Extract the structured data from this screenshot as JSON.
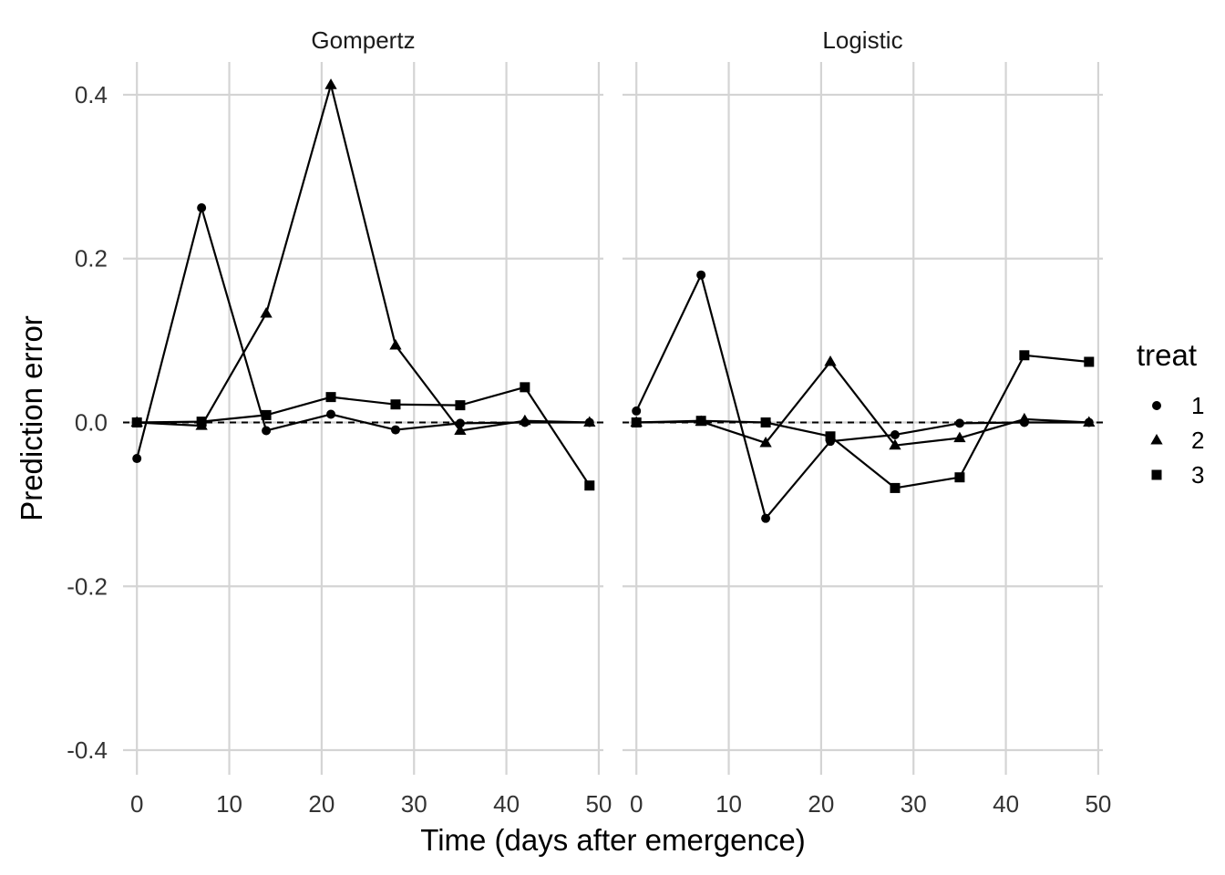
{
  "chart_data": {
    "type": "line",
    "xlabel": "Time (days after emergence)",
    "ylabel": "Prediction error",
    "xlim": [
      -1.5,
      50.5
    ],
    "ylim": [
      -0.43,
      0.44
    ],
    "x_ticks": [
      0,
      10,
      20,
      30,
      40,
      50
    ],
    "y_ticks": [
      0.4,
      0.2,
      0.0,
      -0.2,
      -0.4
    ],
    "y_tick_labels": [
      "0.4",
      "0.2",
      "0.0",
      "-0.2",
      "-0.4"
    ],
    "grid": true,
    "reference_line": {
      "y": 0,
      "style": "dashed"
    },
    "legend": {
      "title": "treat",
      "position": "right",
      "entries": [
        {
          "label": "1",
          "shape": "circle"
        },
        {
          "label": "2",
          "shape": "triangle"
        },
        {
          "label": "3",
          "shape": "square"
        }
      ]
    },
    "panels": [
      {
        "title": "Gompertz",
        "series": [
          {
            "name": "1",
            "shape": "circle",
            "x": [
              0,
              7,
              14,
              21,
              28,
              35,
              42,
              49
            ],
            "y": [
              -0.044,
              0.262,
              -0.01,
              0.01,
              -0.009,
              -0.001,
              0.0,
              0.0
            ]
          },
          {
            "name": "2",
            "shape": "triangle",
            "x": [
              0,
              7,
              14,
              21,
              28,
              35,
              42,
              49
            ],
            "y": [
              0.0,
              -0.004,
              0.133,
              0.412,
              0.094,
              -0.01,
              0.002,
              0.0
            ]
          },
          {
            "name": "3",
            "shape": "square",
            "x": [
              0,
              7,
              14,
              21,
              28,
              35,
              42,
              49
            ],
            "y": [
              0.0,
              0.001,
              0.009,
              0.031,
              0.022,
              0.021,
              0.043,
              -0.077
            ]
          }
        ]
      },
      {
        "title": "Logistic",
        "series": [
          {
            "name": "1",
            "shape": "circle",
            "x": [
              0,
              7,
              14,
              21,
              28,
              35,
              42,
              49
            ],
            "y": [
              0.014,
              0.18,
              -0.117,
              -0.023,
              -0.015,
              -0.001,
              0.0,
              0.0
            ]
          },
          {
            "name": "2",
            "shape": "triangle",
            "x": [
              0,
              7,
              14,
              21,
              28,
              35,
              42,
              49
            ],
            "y": [
              0.0,
              0.001,
              -0.025,
              0.074,
              -0.028,
              -0.019,
              0.004,
              0.0
            ]
          },
          {
            "name": "3",
            "shape": "square",
            "x": [
              0,
              7,
              14,
              21,
              28,
              35,
              42,
              49
            ],
            "y": [
              0.0,
              0.002,
              0.0,
              -0.017,
              -0.08,
              -0.067,
              0.082,
              0.074
            ]
          }
        ]
      }
    ]
  }
}
